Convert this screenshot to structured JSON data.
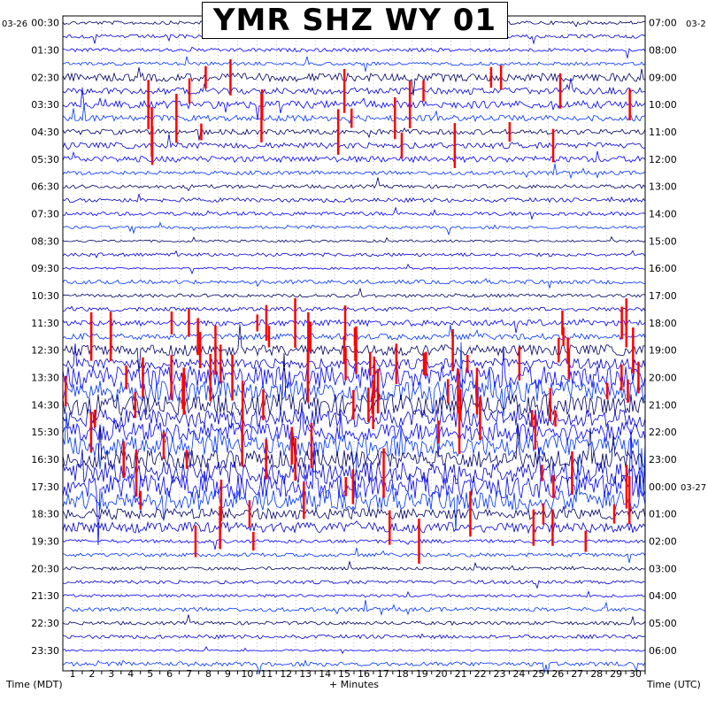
{
  "chart_data": {
    "type": "helicorder",
    "title": "YMR SHZ WY 01",
    "xlabel": "+ Minutes",
    "left_axis_label": "Time (MDT)",
    "right_axis_label": "Time (UTC)",
    "left_date": "03-26",
    "right_date_start": "03-2",
    "right_date_rollover": "03-27",
    "x_ticks": [
      "1",
      "2",
      "3",
      "4",
      "5",
      "6",
      "7",
      "8",
      "9",
      "10",
      "11",
      "12",
      "13",
      "14",
      "15",
      "16",
      "17",
      "18",
      "19",
      "20",
      "21",
      "22",
      "23",
      "24",
      "25",
      "26",
      "27",
      "28",
      "29",
      "30"
    ],
    "xlim": [
      0,
      30
    ],
    "grid": "dotted",
    "left_hour_labels": [
      "00:30",
      "01:30",
      "02:30",
      "03:30",
      "04:30",
      "05:30",
      "06:30",
      "07:30",
      "08:30",
      "09:30",
      "10:30",
      "11:30",
      "12:30",
      "13:30",
      "14:30",
      "15:30",
      "16:30",
      "17:30",
      "18:30",
      "19:30",
      "20:30",
      "21:30",
      "22:30",
      "23:30"
    ],
    "right_hour_labels": [
      "07:00",
      "08:00",
      "09:00",
      "10:00",
      "11:00",
      "12:00",
      "13:00",
      "14:00",
      "15:00",
      "16:00",
      "17:00",
      "18:00",
      "19:00",
      "20:00",
      "21:00",
      "22:00",
      "23:00",
      "00:00",
      "01:00",
      "02:00",
      "03:00",
      "04:00",
      "05:00",
      "06:00"
    ],
    "trace_colors": [
      "#000066",
      "#0000cc",
      "#0000ff",
      "#0033ff"
    ],
    "clip_color": "#ff0000",
    "background": "#ffffff",
    "trace_count": 48
  }
}
